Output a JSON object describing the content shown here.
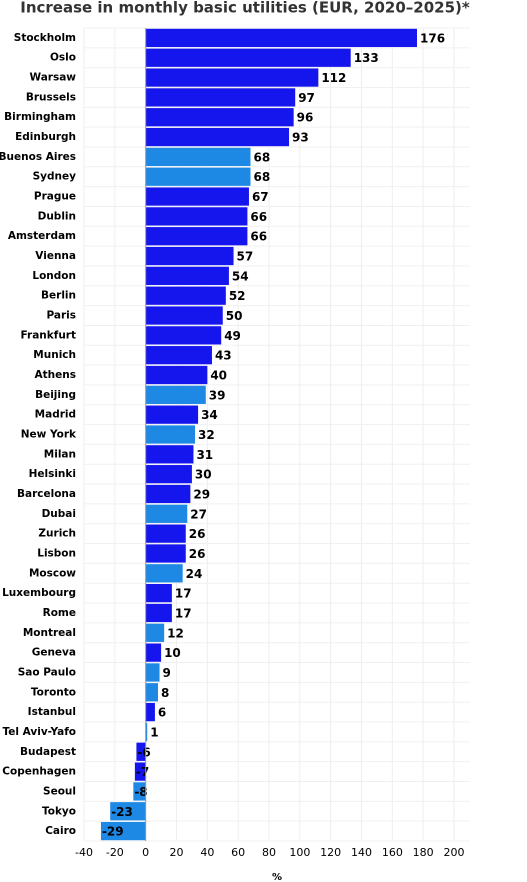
{
  "chart_data": {
    "type": "hbar",
    "title": "Increase in monthly basic utilities (EUR, 2020–2025)*",
    "categories": [
      "Stockholm",
      "Oslo",
      "Warsaw",
      "Brussels",
      "Birmingham",
      "Edinburgh",
      "Buenos Aires",
      "Sydney",
      "Prague",
      "Dublin",
      "Amsterdam",
      "Vienna",
      "London",
      "Berlin",
      "Paris",
      "Frankfurt",
      "Munich",
      "Athens",
      "Beijing",
      "Madrid",
      "New York",
      "Milan",
      "Helsinki",
      "Barcelona",
      "Dubai",
      "Zurich",
      "Lisbon",
      "Moscow",
      "Luxembourg",
      "Rome",
      "Montreal",
      "Geneva",
      "Sao Paulo",
      "Toronto",
      "Istanbul",
      "Tel Aviv-Yafo",
      "Budapest",
      "Copenhagen",
      "Seoul",
      "Tokyo",
      "Cairo"
    ],
    "values": [
      176,
      133,
      112,
      97,
      96,
      93,
      68,
      68,
      67,
      66,
      66,
      57,
      54,
      52,
      50,
      49,
      43,
      40,
      39,
      34,
      32,
      31,
      30,
      29,
      27,
      26,
      26,
      24,
      17,
      17,
      12,
      10,
      9,
      8,
      6,
      1,
      -6,
      -7,
      -8,
      -23,
      -29
    ],
    "colors": [
      "#1515ee",
      "#1515ee",
      "#1515ee",
      "#1515ee",
      "#1515ee",
      "#1515ee",
      "#1e88e5",
      "#1e88e5",
      "#1515ee",
      "#1515ee",
      "#1515ee",
      "#1515ee",
      "#1515ee",
      "#1515ee",
      "#1515ee",
      "#1515ee",
      "#1515ee",
      "#1515ee",
      "#1e88e5",
      "#1515ee",
      "#1e88e5",
      "#1515ee",
      "#1515ee",
      "#1515ee",
      "#1e88e5",
      "#1515ee",
      "#1515ee",
      "#1e88e5",
      "#1515ee",
      "#1515ee",
      "#1e88e5",
      "#1515ee",
      "#1e88e5",
      "#1e88e5",
      "#1515ee",
      "#1e88e5",
      "#1515ee",
      "#1515ee",
      "#1e88e5",
      "#1e88e5",
      "#1e88e5"
    ],
    "xlabel": "%",
    "xlim": [
      -40,
      200
    ],
    "xticks": [
      -40,
      -20,
      0,
      20,
      40,
      60,
      80,
      100,
      120,
      140,
      160,
      180,
      200
    ],
    "grid": true
  }
}
